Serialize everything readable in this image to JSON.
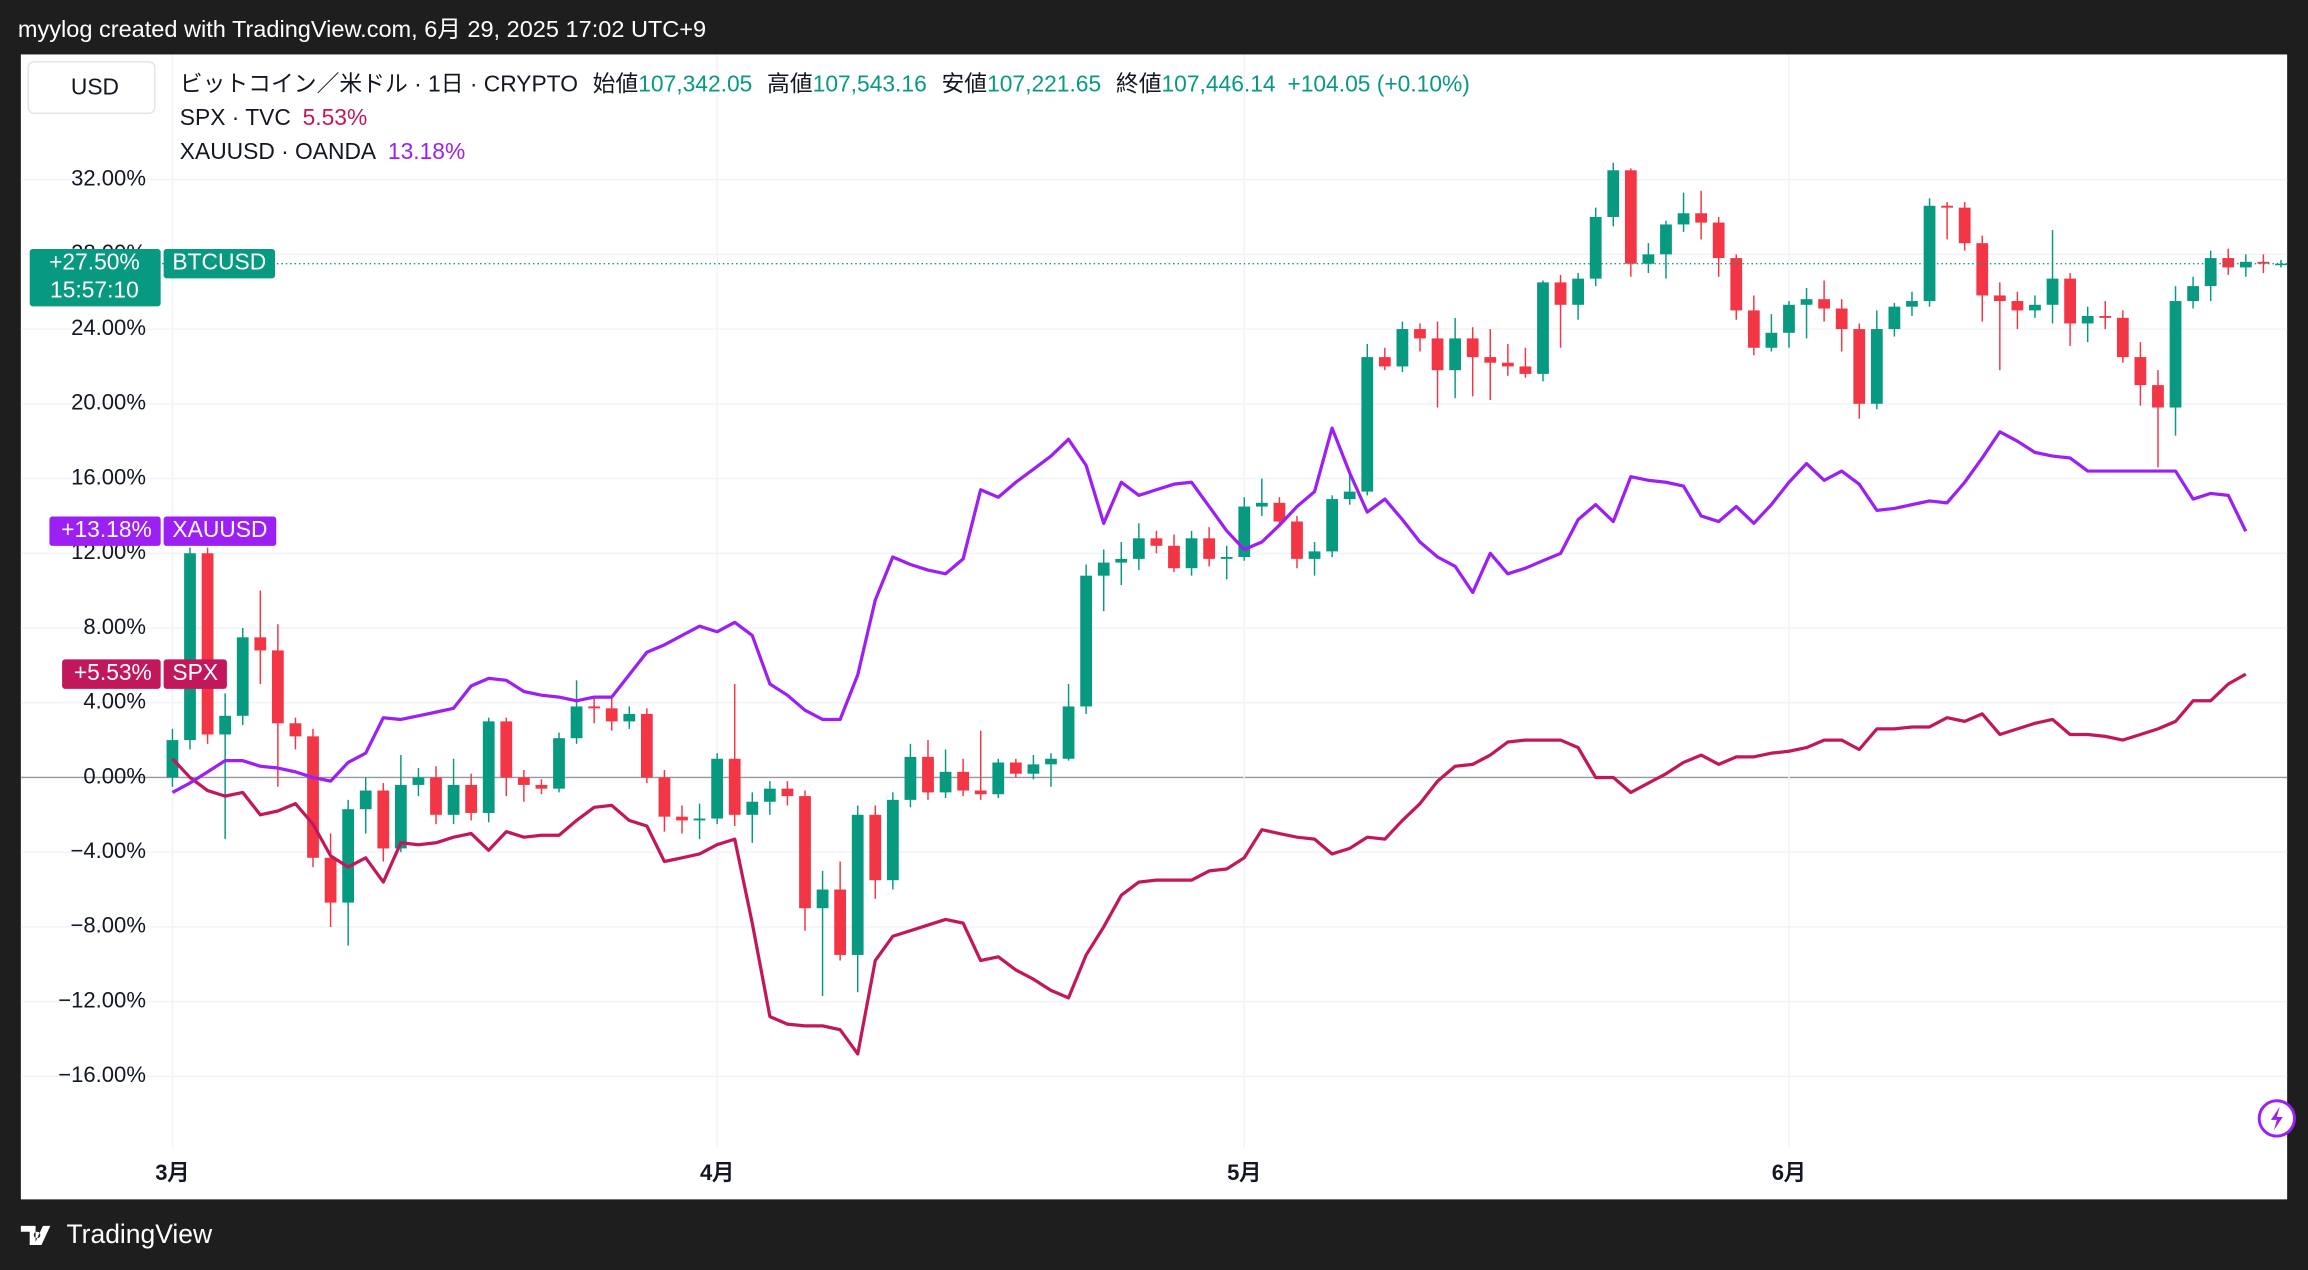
{
  "header": "myylog created with TradingView.com, 6月 29, 2025 17:02 UTC+9",
  "footer": "TradingView",
  "chart_data": {
    "type": "candlestick",
    "currency": "USD",
    "legend": {
      "title": "ビットコイン／米ドル · 1日 · CRYPTO",
      "ohlc": [
        {
          "label": "始値",
          "value": "107,342.05"
        },
        {
          "label": "高値",
          "value": "107,543.16"
        },
        {
          "label": "安値",
          "value": "107,221.65"
        },
        {
          "label": "終値",
          "value": "107,446.14"
        }
      ],
      "change": "+104.05 (+0.10%)",
      "compare": [
        {
          "label": "SPX · TVC",
          "value": "5.53%"
        },
        {
          "label": "XAUUSD · OANDA",
          "value": "13.18%"
        }
      ]
    },
    "categories": [
      "3月",
      null,
      null,
      null,
      null,
      null,
      null,
      null,
      null,
      null,
      null,
      null,
      null,
      null,
      null,
      null,
      null,
      null,
      null,
      null,
      null,
      null,
      null,
      null,
      null,
      null,
      null,
      null,
      null,
      null,
      null,
      "4月",
      null,
      null,
      null,
      null,
      null,
      null,
      null,
      null,
      null,
      null,
      null,
      null,
      null,
      null,
      null,
      null,
      null,
      null,
      null,
      null,
      null,
      null,
      null,
      null,
      null,
      null,
      null,
      null,
      null,
      "5月",
      null,
      null,
      null,
      null,
      null,
      null,
      null,
      null,
      null,
      null,
      null,
      null,
      null,
      null,
      null,
      null,
      null,
      null,
      null,
      null,
      null,
      null,
      null,
      null,
      null,
      null,
      null,
      null,
      null,
      null,
      "6月",
      null,
      null,
      null,
      null,
      null,
      null,
      null,
      null,
      null,
      null,
      null,
      null,
      null,
      null,
      null,
      null,
      null,
      null,
      null,
      null,
      null,
      null,
      null,
      null,
      null,
      null,
      null,
      null
    ],
    "ylim": [
      -19,
      38.7
    ],
    "yticks": [
      {
        "value": -16,
        "label": "−16.00%"
      },
      {
        "value": -12,
        "label": "−12.00%"
      },
      {
        "value": -8,
        "label": "−8.00%"
      },
      {
        "value": -4,
        "label": "−4.00%"
      },
      {
        "value": 0,
        "label": "0.00%"
      },
      {
        "value": 4,
        "label": "4.00%"
      },
      {
        "value": 8,
        "label": "8.00%"
      },
      {
        "value": 12,
        "label": "12.00%"
      },
      {
        "value": 16,
        "label": "16.00%"
      },
      {
        "value": 20,
        "label": "20.00%"
      },
      {
        "value": 24,
        "label": "24.00%"
      },
      {
        "value": 28,
        "label": "28.00%"
      },
      {
        "value": 32,
        "label": "32.00%"
      }
    ],
    "grid": true,
    "series": [
      {
        "name": "BTCUSD",
        "type": "candlestick",
        "up_color": "#089981",
        "down_color": "#f23645",
        "last_label": "+27.50%",
        "countdown": "15:57:10",
        "ohlc": [
          [
            0,
            2.6,
            -0.5,
            2
          ],
          [
            2,
            12.3,
            1.5,
            12
          ],
          [
            12,
            12.3,
            1.8,
            2.3
          ],
          [
            2.3,
            4.5,
            -3.3,
            3.3
          ],
          [
            3.3,
            8,
            2.8,
            7.5
          ],
          [
            7.5,
            10,
            5,
            6.8
          ],
          [
            6.8,
            8.2,
            -0.5,
            2.9
          ],
          [
            2.9,
            3.2,
            1.5,
            2.2
          ],
          [
            2.2,
            2.6,
            -4.8,
            -4.3
          ],
          [
            -4.3,
            -3,
            -8,
            -6.7
          ],
          [
            -6.7,
            -1.2,
            -9,
            -1.7
          ],
          [
            -1.7,
            0,
            -3,
            -0.7
          ],
          [
            -0.7,
            -0.3,
            -4.5,
            -3.8
          ],
          [
            -3.8,
            1.2,
            -4,
            -0.4
          ],
          [
            -0.4,
            0.5,
            -1,
            0
          ],
          [
            0,
            0.6,
            -2.5,
            -2
          ],
          [
            -2,
            1,
            -2.5,
            -0.4
          ],
          [
            -0.4,
            0.2,
            -2.3,
            -1.9
          ],
          [
            -1.9,
            3.2,
            -2.4,
            3
          ],
          [
            3,
            3.2,
            -1,
            0
          ],
          [
            0,
            0.4,
            -1.3,
            -0.4
          ],
          [
            -0.4,
            -0.1,
            -0.9,
            -0.6
          ],
          [
            -0.6,
            2.4,
            -0.8,
            2.1
          ],
          [
            2.1,
            5.2,
            1.8,
            3.8
          ],
          [
            3.8,
            4.3,
            2.9,
            3.7
          ],
          [
            3.7,
            4.3,
            2.5,
            3
          ],
          [
            3,
            3.8,
            2.6,
            3.4
          ],
          [
            3.4,
            3.7,
            -0.3,
            0
          ],
          [
            0,
            0.4,
            -2.9,
            -2.1
          ],
          [
            -2.1,
            -1.5,
            -3,
            -2.3
          ],
          [
            -2.3,
            -1.4,
            -3.3,
            -2.2
          ],
          [
            -2.2,
            1.3,
            -2.5,
            1
          ],
          [
            1,
            5,
            -2.6,
            -2
          ],
          [
            -2,
            -0.8,
            -3.5,
            -1.3
          ],
          [
            -1.3,
            -0.2,
            -2,
            -0.6
          ],
          [
            -0.6,
            -0.2,
            -1.5,
            -1
          ],
          [
            -1,
            -0.7,
            -8.2,
            -7
          ],
          [
            -7,
            -5,
            -11.7,
            -6
          ],
          [
            -6,
            -4.5,
            -9.8,
            -9.5
          ],
          [
            -9.5,
            -1.5,
            -11.5,
            -2
          ],
          [
            -2,
            -1.5,
            -6.5,
            -5.5
          ],
          [
            -5.5,
            -0.8,
            -6,
            -1.2
          ],
          [
            -1.2,
            1.8,
            -1.6,
            1.1
          ],
          [
            1.1,
            2,
            -1.2,
            -0.8
          ],
          [
            -0.8,
            1.5,
            -1.1,
            0.3
          ],
          [
            0.3,
            1,
            -1,
            -0.7
          ],
          [
            -0.7,
            2.5,
            -1.2,
            -0.9
          ],
          [
            -0.9,
            1,
            -1.1,
            0.8
          ],
          [
            0.8,
            1,
            0,
            0.2
          ],
          [
            0.2,
            1.2,
            -0.1,
            0.7
          ],
          [
            0.7,
            1.3,
            -0.5,
            1
          ],
          [
            1,
            5,
            0.9,
            3.8
          ],
          [
            3.8,
            11.4,
            3.4,
            10.8
          ],
          [
            10.8,
            12.2,
            8.9,
            11.5
          ],
          [
            11.5,
            12.6,
            10.3,
            11.7
          ],
          [
            11.7,
            13.6,
            11.1,
            12.8
          ],
          [
            12.8,
            13.2,
            12,
            12.4
          ],
          [
            12.4,
            13,
            11,
            11.2
          ],
          [
            11.2,
            13.2,
            10.8,
            12.8
          ],
          [
            12.8,
            13.4,
            11.3,
            11.7
          ],
          [
            11.7,
            12.4,
            10.6,
            11.8
          ],
          [
            11.8,
            15,
            11.6,
            14.5
          ],
          [
            14.5,
            16,
            14,
            14.7
          ],
          [
            14.7,
            15,
            13.4,
            13.7
          ],
          [
            13.7,
            14,
            11.2,
            11.7
          ],
          [
            11.7,
            12.6,
            10.8,
            12.1
          ],
          [
            12.1,
            15.1,
            11.8,
            14.9
          ],
          [
            14.9,
            16.4,
            14.6,
            15.3
          ],
          [
            15.3,
            23.2,
            15.1,
            22.5
          ],
          [
            22.5,
            23,
            21.8,
            22
          ],
          [
            22,
            24.4,
            21.7,
            24
          ],
          [
            24,
            24.3,
            22.8,
            23.5
          ],
          [
            23.5,
            24.4,
            19.8,
            21.8
          ],
          [
            21.8,
            24.6,
            20.3,
            23.5
          ],
          [
            23.5,
            24.1,
            20.4,
            22.5
          ],
          [
            22.5,
            24,
            20.2,
            22.2
          ],
          [
            22.2,
            23.2,
            21.5,
            22
          ],
          [
            22,
            23,
            21.4,
            21.6
          ],
          [
            21.6,
            26.6,
            21.2,
            26.5
          ],
          [
            26.5,
            26.9,
            23,
            25.3
          ],
          [
            25.3,
            27,
            24.5,
            26.7
          ],
          [
            26.7,
            30.5,
            26.3,
            30
          ],
          [
            30,
            32.9,
            29.5,
            32.5
          ],
          [
            32.5,
            32.6,
            26.8,
            27.5
          ],
          [
            27.5,
            28.6,
            27,
            28
          ],
          [
            28,
            29.8,
            26.7,
            29.6
          ],
          [
            29.6,
            31.3,
            29.2,
            30.2
          ],
          [
            30.2,
            31.4,
            28.8,
            29.7
          ],
          [
            29.7,
            30,
            26.8,
            27.8
          ],
          [
            27.8,
            28,
            24.5,
            25
          ],
          [
            25,
            25.8,
            22.6,
            23
          ],
          [
            23,
            24.8,
            22.8,
            23.8
          ],
          [
            23.8,
            25.5,
            23,
            25.3
          ],
          [
            25.3,
            26.2,
            23.5,
            25.6
          ],
          [
            25.6,
            26.6,
            24.4,
            25.1
          ],
          [
            25.1,
            25.6,
            22.8,
            24
          ],
          [
            24,
            24.3,
            19.2,
            20
          ],
          [
            20,
            25,
            19.7,
            24
          ],
          [
            24,
            25.4,
            23.6,
            25.2
          ],
          [
            25.2,
            26,
            24.7,
            25.5
          ],
          [
            25.5,
            31,
            25.2,
            30.6
          ],
          [
            30.6,
            30.8,
            28.8,
            30.5
          ],
          [
            30.5,
            30.8,
            28.2,
            28.6
          ],
          [
            28.6,
            29,
            24.4,
            25.8
          ],
          [
            25.8,
            26.5,
            21.8,
            25.5
          ],
          [
            25.5,
            26,
            24,
            25
          ],
          [
            25,
            25.8,
            24.6,
            25.3
          ],
          [
            25.3,
            29.3,
            24.3,
            26.7
          ],
          [
            26.7,
            27,
            23.1,
            24.3
          ],
          [
            24.3,
            25.2,
            23.3,
            24.7
          ],
          [
            24.7,
            25.5,
            24,
            24.6
          ],
          [
            24.6,
            25,
            22.2,
            22.5
          ],
          [
            22.5,
            23.3,
            19.9,
            21
          ],
          [
            21,
            21.8,
            16.6,
            19.8
          ],
          [
            19.8,
            26.3,
            18.3,
            25.5
          ],
          [
            25.5,
            26.8,
            25.1,
            26.3
          ],
          [
            26.3,
            28.2,
            25.5,
            27.8
          ],
          [
            27.8,
            28.3,
            26.9,
            27.3
          ],
          [
            27.3,
            28,
            26.8,
            27.6
          ],
          [
            27.6,
            28,
            27,
            27.5
          ],
          [
            27.5,
            27.7,
            27.3,
            27.5
          ]
        ]
      },
      {
        "name": "SPX",
        "type": "line",
        "color": "#c2185b",
        "last_label": "+5.53%",
        "values": [
          1,
          0,
          -0.7,
          -1,
          -0.8,
          -2,
          -1.8,
          -1.4,
          -2.5,
          -4.2,
          -4.8,
          -4.3,
          -5.6,
          -3.5,
          -3.6,
          -3.5,
          -3.2,
          -3,
          -3.9,
          -2.9,
          -3.2,
          -3.1,
          -3.1,
          -2.3,
          -1.6,
          -1.5,
          -2.3,
          -2.6,
          -4.5,
          -4.3,
          -4.1,
          -3.6,
          -3.3,
          -7.8,
          -12.8,
          -13.2,
          -13.3,
          -13.3,
          -13.5,
          -14.8,
          -9.8,
          -8.5,
          -8.2,
          -7.9,
          -7.6,
          -7.8,
          -9.8,
          -9.6,
          -10.3,
          -10.8,
          -11.4,
          -11.8,
          -9.5,
          -8,
          -6.3,
          -5.6,
          -5.5,
          -5.5,
          -5.5,
          -5,
          -4.9,
          -4.3,
          -2.8,
          -3,
          -3.2,
          -3.3,
          -4.1,
          -3.8,
          -3.2,
          -3.3,
          -2.3,
          -1.4,
          -0.2,
          0.6,
          0.7,
          1.2,
          1.9,
          2,
          2,
          2,
          1.6,
          0,
          0,
          -0.8,
          -0.3,
          0.2,
          0.8,
          1.2,
          0.7,
          1.1,
          1.1,
          1.3,
          1.4,
          1.6,
          2,
          2,
          1.5,
          2.6,
          2.6,
          2.7,
          2.7,
          3.2,
          3,
          3.4,
          2.3,
          2.6,
          2.9,
          3.1,
          2.3,
          2.3,
          2.2,
          2,
          2.3,
          2.6,
          3,
          4.1,
          4.1,
          5,
          5.53,
          null,
          null
        ]
      },
      {
        "name": "XAUUSD",
        "type": "line",
        "color": "#9c1ff3",
        "last_label": "+13.18%",
        "values": [
          -0.8,
          -0.3,
          0.3,
          0.9,
          0.9,
          0.6,
          0.5,
          0.3,
          0,
          -0.2,
          0.8,
          1.3,
          3.2,
          3.1,
          3.3,
          3.5,
          3.7,
          4.9,
          5.3,
          5.2,
          4.6,
          4.4,
          4.3,
          4.1,
          4.3,
          4.3,
          5.5,
          6.7,
          7.1,
          7.6,
          8.1,
          7.8,
          8.3,
          7.6,
          5,
          4.4,
          3.6,
          3.1,
          3.1,
          5.5,
          9.5,
          11.8,
          11.4,
          11.1,
          10.9,
          11.7,
          15.4,
          15,
          15.8,
          16.5,
          17.2,
          18.1,
          16.7,
          13.6,
          15.8,
          15.1,
          15.4,
          15.7,
          15.8,
          14.5,
          13.2,
          12.2,
          12.6,
          13.5,
          14.5,
          15.3,
          18.7,
          16.3,
          14.2,
          14.9,
          13.8,
          12.6,
          11.8,
          11.3,
          9.9,
          12,
          10.9,
          11.2,
          11.6,
          12,
          13.8,
          14.6,
          13.7,
          16.1,
          15.9,
          15.8,
          15.6,
          14,
          13.7,
          14.5,
          13.6,
          14.6,
          15.8,
          16.8,
          15.9,
          16.4,
          15.7,
          14.3,
          14.4,
          14.6,
          14.8,
          14.7,
          15.8,
          17.1,
          18.5,
          18,
          17.4,
          17.2,
          17.1,
          16.4,
          16.4,
          16.4,
          16.4,
          16.4,
          16.4,
          14.9,
          15.2,
          15.1,
          13.18,
          null,
          null
        ]
      }
    ]
  }
}
